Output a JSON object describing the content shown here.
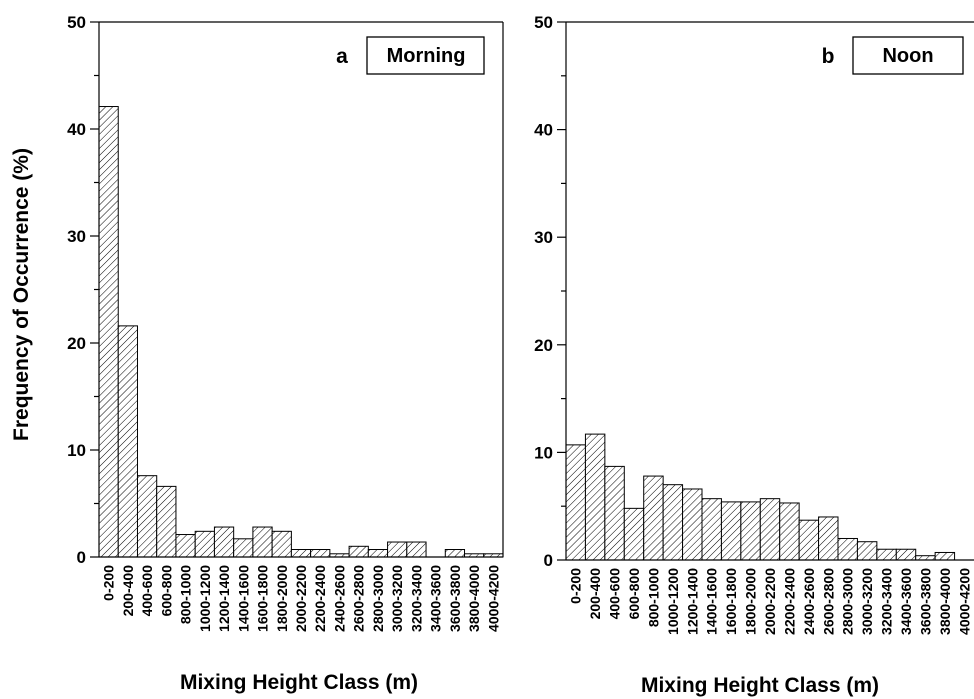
{
  "chart_data": [
    {
      "type": "bar",
      "panel_letter": "a",
      "panel_label": "Morning",
      "xlabel": "Mixing Height Class (m)",
      "ylabel": "Frequency of Occurrence (%)",
      "ylim": [
        0,
        50
      ],
      "yticks": [
        0,
        10,
        20,
        30,
        40,
        50
      ],
      "categories": [
        "0-200",
        "200-400",
        "400-600",
        "600-800",
        "800-1000",
        "1000-1200",
        "1200-1400",
        "1400-1600",
        "1600-1800",
        "1800-2000",
        "2000-2200",
        "2200-2400",
        "2400-2600",
        "2600-2800",
        "2800-3000",
        "3000-3200",
        "3200-3400",
        "3400-3600",
        "3600-3800",
        "3800-4000",
        "4000-4200"
      ],
      "values": [
        42.1,
        21.6,
        7.6,
        6.6,
        2.1,
        2.4,
        2.8,
        1.7,
        2.8,
        2.4,
        0.7,
        0.7,
        0.3,
        1.0,
        0.7,
        1.4,
        1.4,
        0.0,
        0.7,
        0.3,
        0.3
      ]
    },
    {
      "type": "bar",
      "panel_letter": "b",
      "panel_label": "Noon",
      "xlabel": "Mixing Height Class (m)",
      "ylabel": "",
      "ylim": [
        0,
        50
      ],
      "yticks": [
        0,
        10,
        20,
        30,
        40,
        50
      ],
      "categories": [
        "0-200",
        "200-400",
        "400-600",
        "600-800",
        "800-1000",
        "1000-1200",
        "1200-1400",
        "1400-1600",
        "1600-1800",
        "1800-2000",
        "2000-2200",
        "2200-2400",
        "2400-2600",
        "2600-2800",
        "2800-3000",
        "3000-3200",
        "3200-3400",
        "3400-3600",
        "3600-3800",
        "3800-4000",
        "4000-4200"
      ],
      "values": [
        10.7,
        11.7,
        8.7,
        4.8,
        7.8,
        7.0,
        6.6,
        5.7,
        5.4,
        5.4,
        5.7,
        5.3,
        3.7,
        4.0,
        2.0,
        1.7,
        1.0,
        1.0,
        0.4,
        0.7,
        0.0
      ]
    }
  ]
}
